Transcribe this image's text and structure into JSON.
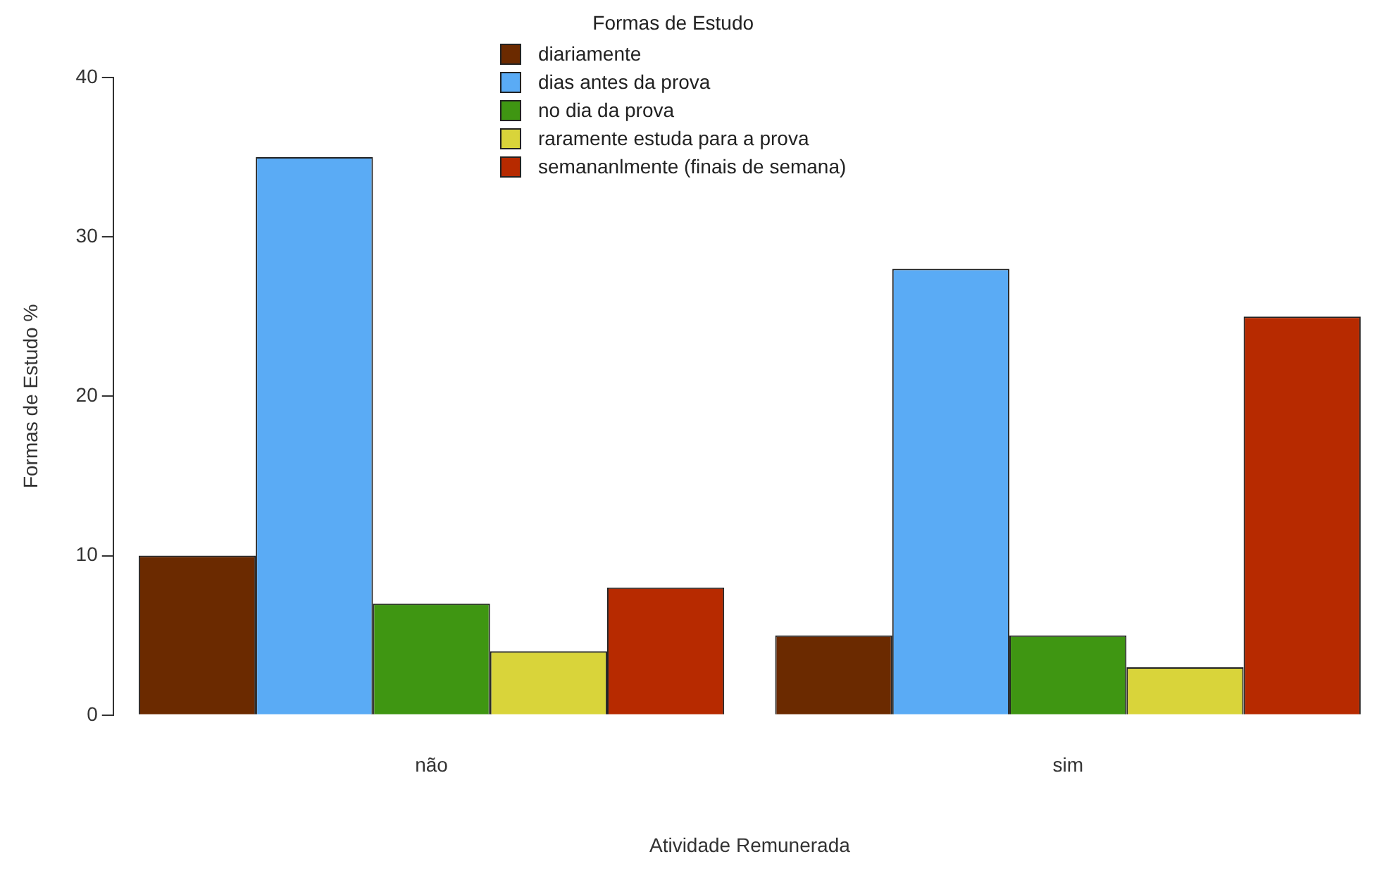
{
  "chart_data": {
    "type": "bar",
    "legend_title": "Formas de Estudo",
    "xlabel": "Atividade Remunerada",
    "ylabel": "Formas de Estudo %",
    "categories": [
      "não",
      "sim"
    ],
    "series": [
      {
        "name": "diariamente",
        "color": "#6b2a00",
        "values": [
          10,
          5
        ]
      },
      {
        "name": "dias antes da prova",
        "color": "#5aabf5",
        "values": [
          35,
          28
        ]
      },
      {
        "name": "no dia da prova",
        "color": "#3f9612",
        "values": [
          7,
          5
        ]
      },
      {
        "name": "raramente estuda para a prova",
        "color": "#d9d43a",
        "values": [
          4,
          3
        ]
      },
      {
        "name": "semananlmente (finais de semana)",
        "color": "#b72a00",
        "values": [
          8,
          25
        ]
      }
    ],
    "ylim": [
      0,
      40
    ],
    "yticks": [
      0,
      10,
      20,
      30,
      40
    ],
    "grid": false,
    "legend": "top"
  }
}
